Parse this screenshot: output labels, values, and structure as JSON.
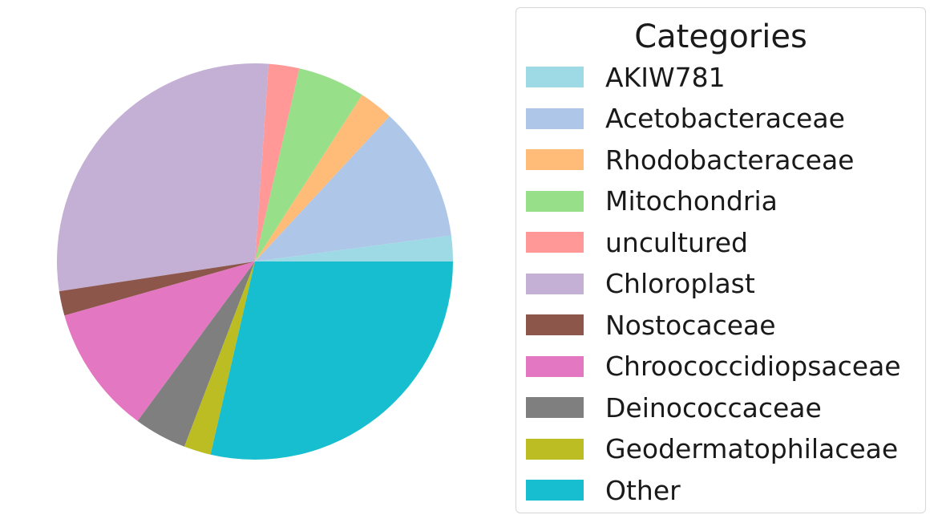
{
  "chart_data": {
    "type": "pie",
    "categories": [
      "AKIW781",
      "Acetobacteraceae",
      "Rhodobacteraceae",
      "Mitochondria",
      "uncultured",
      "Chloroplast",
      "Nostocaceae",
      "Chroococcidiopsaceae",
      "Deinococcaceae",
      "Geodermatophilaceae",
      "Other"
    ],
    "values": [
      2.1,
      11.0,
      2.8,
      5.5,
      2.5,
      28.5,
      2.0,
      10.5,
      4.3,
      2.2,
      28.6
    ],
    "colors": [
      "#9edae5",
      "#aec7e8",
      "#ffbb78",
      "#98df8a",
      "#ff9896",
      "#c5b0d5",
      "#8c564b",
      "#e377c2",
      "#7f7f7f",
      "#bcbd22",
      "#17becf"
    ],
    "start_angle_deg": 0,
    "direction": "counterclockwise",
    "legend": {
      "title": "Categories",
      "placement": "right"
    }
  }
}
